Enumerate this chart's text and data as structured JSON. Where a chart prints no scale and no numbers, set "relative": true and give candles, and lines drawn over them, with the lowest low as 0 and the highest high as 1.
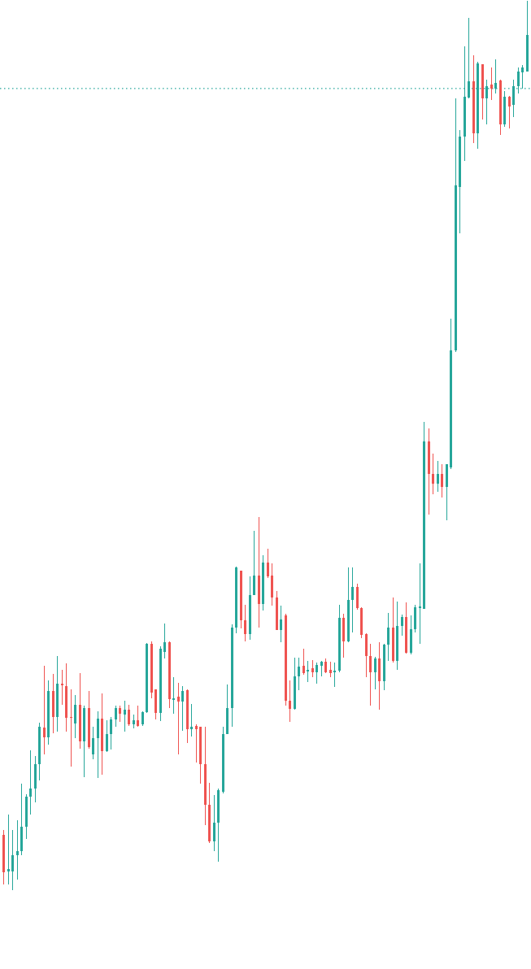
{
  "chart_data": {
    "type": "candlestick",
    "relative": true,
    "colors": [
      "#ef5350",
      "#26a69a",
      "#26a69a",
      "#26a69a",
      "#26a69a",
      "#26a69a",
      "#26a69a",
      "#26a69a",
      "#26a69a",
      "#ef5350",
      "#26a69a",
      "#ef5350",
      "#26a69a",
      "#ef5350",
      "#ef5350",
      "#ef5350",
      "#26a69a",
      "#ef5350",
      "#26a69a",
      "#ef5350",
      "#26a69a",
      "#26a69a",
      "#ef5350",
      "#26a69a",
      "#26a69a",
      "#26a69a",
      "#ef5350",
      "#26a69a",
      "#ef5350",
      "#26a69a",
      "#ef5350",
      "#26a69a",
      "#26a69a",
      "#ef5350",
      "#ef5350",
      "#26a69a",
      "#26a69a",
      "#ef5350",
      "#26a69a",
      "#ef5350",
      "#26a69a",
      "#ef5350",
      "#26a69a",
      "#ef5350",
      "#ef5350",
      "#ef5350",
      "#ef5350",
      "#26a69a",
      "#26a69a",
      "#26a69a",
      "#26a69a",
      "#26a69a",
      "#26a69a",
      "#ef5350",
      "#ef5350",
      "#26a69a",
      "#26a69a",
      "#ef5350",
      "#26a69a",
      "#ef5350",
      "#ef5350",
      "#ef5350",
      "#26a69a",
      "#ef5350",
      "#ef5350",
      "#26a69a",
      "#26a69a",
      "#ef5350",
      "#26a69a",
      "#ef5350",
      "#26a69a",
      "#26a69a",
      "#ef5350",
      "#ef5350",
      "#26a69a",
      "#26a69a",
      "#ef5350",
      "#26a69a",
      "#26a69a",
      "#ef5350",
      "#ef5350",
      "#ef5350",
      "#ef5350",
      "#26a69a",
      "#ef5350",
      "#26a69a",
      "#26a69a",
      "#ef5350",
      "#26a69a",
      "#26a69a",
      "#ef5350",
      "#26a69a",
      "#26a69a",
      "#26a69a",
      "#26a69a",
      "#ef5350",
      "#ef5350",
      "#26a69a",
      "#ef5350",
      "#26a69a",
      "#26a69a",
      "#26a69a",
      "#26a69a",
      "#26a69a",
      "#26a69a",
      "#ef5350",
      "#26a69a",
      "#ef5350",
      "#26a69a",
      "#ef5350",
      "#26a69a",
      "#ef5350",
      "#26a69a",
      "#ef5350",
      "#26a69a",
      "#26a69a",
      "#26a69a",
      "#26a69a"
    ],
    "categories": [
      null,
      null,
      null,
      null,
      null,
      null,
      null,
      null,
      null,
      null,
      null,
      null,
      null,
      null,
      null,
      null,
      null,
      null,
      null,
      null,
      null,
      null,
      null,
      null,
      null,
      null,
      null,
      null,
      null,
      null,
      null,
      null,
      null,
      null,
      null,
      null,
      null,
      null,
      null,
      null,
      null,
      null,
      null,
      null,
      null,
      null,
      null,
      null,
      null,
      null,
      null,
      null,
      null,
      null,
      null,
      null,
      null,
      null,
      null,
      null,
      null,
      null,
      null,
      null,
      null,
      null,
      null,
      null,
      null,
      null,
      null,
      null,
      null,
      null,
      null,
      null,
      null,
      null,
      null,
      null,
      null,
      null,
      null,
      null,
      null,
      null,
      null,
      null,
      null,
      null,
      null,
      null,
      null,
      null,
      null,
      null,
      null,
      null,
      null,
      null,
      null,
      null,
      null,
      null,
      null,
      null,
      null,
      null,
      null,
      null,
      null,
      null,
      null,
      null,
      null,
      null,
      null,
      null
    ],
    "ohlc": [
      [
        0.062,
        0.068,
        0.006,
        0.02
      ],
      [
        0.021,
        0.085,
        0.006,
        0.024
      ],
      [
        0.021,
        0.068,
        0,
        0.039
      ],
      [
        0.039,
        0.079,
        0.012,
        0.044
      ],
      [
        0.044,
        0.12,
        0.039,
        0.071
      ],
      [
        0.071,
        0.108,
        0.058,
        0.105
      ],
      [
        0.105,
        0.157,
        0.085,
        0.114
      ],
      [
        0.114,
        0.151,
        0.099,
        0.142
      ],
      [
        0.142,
        0.188,
        0.123,
        0.184
      ],
      [
        0.183,
        0.252,
        0.153,
        0.172
      ],
      [
        0.172,
        0.236,
        0.164,
        0.224
      ],
      [
        0.224,
        0.243,
        0.176,
        0.195
      ],
      [
        0.195,
        0.263,
        0.178,
        0.232
      ],
      [
        0.232,
        0.248,
        0.208,
        0.23
      ],
      [
        0.229,
        0.255,
        0.178,
        0.194
      ],
      [
        0.195,
        0.226,
        0.139,
        0.194
      ],
      [
        0.187,
        0.219,
        0.171,
        0.208
      ],
      [
        0.208,
        0.244,
        0.159,
        0.167
      ],
      [
        0.167,
        0.207,
        0.127,
        0.205
      ],
      [
        0.205,
        0.224,
        0.159,
        0.161
      ],
      [
        0.153,
        0.184,
        0.147,
        0.171
      ],
      [
        0.171,
        0.201,
        0.126,
        0.193
      ],
      [
        0.193,
        0.221,
        0.13,
        0.156
      ],
      [
        0.156,
        0.191,
        0.155,
        0.175
      ],
      [
        0.175,
        0.195,
        0.158,
        0.192
      ],
      [
        0.192,
        0.207,
        0.184,
        0.205
      ],
      [
        0.205,
        0.207,
        0.189,
        0.198
      ],
      [
        0.197,
        0.213,
        0.178,
        0.203
      ],
      [
        0.203,
        0.208,
        0.185,
        0.186
      ],
      [
        0.186,
        0.197,
        0.182,
        0.191
      ],
      [
        0.191,
        0.207,
        0.184,
        0.185
      ],
      [
        0.186,
        0.201,
        0.185,
        0.2
      ],
      [
        0.2,
        0.278,
        0.199,
        0.277
      ],
      [
        0.277,
        0.28,
        0.216,
        0.222
      ],
      [
        0.226,
        0.226,
        0.192,
        0.199
      ],
      [
        0.199,
        0.274,
        0.19,
        0.271
      ],
      [
        0.268,
        0.3,
        0.26,
        0.279
      ],
      [
        0.279,
        0.28,
        0.205,
        0.215
      ],
      [
        0.214,
        0.239,
        0.198,
        0.216
      ],
      [
        0.217,
        0.233,
        0.153,
        0.212
      ],
      [
        0.212,
        0.229,
        0.179,
        0.224
      ],
      [
        0.225,
        0.226,
        0.165,
        0.181
      ],
      [
        0.181,
        0.209,
        0.173,
        0.184
      ],
      [
        0.185,
        0.186,
        0.143,
        0.181
      ],
      [
        0.184,
        0.184,
        0.12,
        0.142
      ],
      [
        0.142,
        0.184,
        0.073,
        0.096
      ],
      [
        0.096,
        0.121,
        0.053,
        0.055
      ],
      [
        0.055,
        0.107,
        0.044,
        0.076
      ],
      [
        0.076,
        0.114,
        0.032,
        0.112
      ],
      [
        0.111,
        0.184,
        0.109,
        0.175
      ],
      [
        0.175,
        0.231,
        0.175,
        0.205
      ],
      [
        0.205,
        0.299,
        0.184,
        0.295
      ],
      [
        0.295,
        0.364,
        0.289,
        0.363
      ],
      [
        0.359,
        0.359,
        0.294,
        0.303
      ],
      [
        0.303,
        0.321,
        0.28,
        0.288
      ],
      [
        0.288,
        0.353,
        0.281,
        0.332
      ],
      [
        0.332,
        0.404,
        0.332,
        0.354
      ],
      [
        0.354,
        0.419,
        0.295,
        0.322
      ],
      [
        0.322,
        0.376,
        0.314,
        0.368
      ],
      [
        0.368,
        0.384,
        0.351,
        0.353
      ],
      [
        0.354,
        0.367,
        0.32,
        0.329
      ],
      [
        0.329,
        0.336,
        0.292,
        0.292
      ],
      [
        0.292,
        0.32,
        0.279,
        0.304
      ],
      [
        0.309,
        0.311,
        0.207,
        0.213
      ],
      [
        0.213,
        0.236,
        0.189,
        0.204
      ],
      [
        0.204,
        0.261,
        0.203,
        0.24
      ],
      [
        0.24,
        0.261,
        0.225,
        0.251
      ],
      [
        0.252,
        0.271,
        0.242,
        0.244
      ],
      [
        0.246,
        0.258,
        0.234,
        0.248
      ],
      [
        0.249,
        0.259,
        0.239,
        0.245
      ],
      [
        0.245,
        0.256,
        0.232,
        0.253
      ],
      [
        0.252,
        0.258,
        0.24,
        0.257
      ],
      [
        0.257,
        0.26,
        0.244,
        0.245
      ],
      [
        0.248,
        0.257,
        0.239,
        0.244
      ],
      [
        0.245,
        0.256,
        0.228,
        0.247
      ],
      [
        0.247,
        0.321,
        0.245,
        0.306
      ],
      [
        0.306,
        0.311,
        0.261,
        0.28
      ],
      [
        0.28,
        0.363,
        0.279,
        0.326
      ],
      [
        0.326,
        0.363,
        0.29,
        0.341
      ],
      [
        0.341,
        0.344,
        0.315,
        0.317
      ],
      [
        0.317,
        0.318,
        0.283,
        0.287
      ],
      [
        0.288,
        0.289,
        0.239,
        0.263
      ],
      [
        0.263,
        0.277,
        0.207,
        0.245
      ],
      [
        0.245,
        0.262,
        0.226,
        0.26
      ],
      [
        0.26,
        0.279,
        0.203,
        0.235
      ],
      [
        0.235,
        0.277,
        0.225,
        0.276
      ],
      [
        0.276,
        0.312,
        0.258,
        0.295
      ],
      [
        0.295,
        0.329,
        0.256,
        0.258
      ],
      [
        0.258,
        0.324,
        0.248,
        0.297
      ],
      [
        0.297,
        0.31,
        0.286,
        0.307
      ],
      [
        0.307,
        0.323,
        0.266,
        0.267
      ],
      [
        0.267,
        0.309,
        0.265,
        0.293
      ],
      [
        0.293,
        0.321,
        0.29,
        0.318
      ],
      [
        0.317,
        0.367,
        0.277,
        0.319
      ],
      [
        0.316,
        0.526,
        0.316,
        0.504
      ],
      [
        0.504,
        0.519,
        0.422,
        0.468
      ],
      [
        0.468,
        0.491,
        0.445,
        0.457
      ],
      [
        0.457,
        0.482,
        0.448,
        0.468
      ],
      [
        0.468,
        0.479,
        0.441,
        0.453
      ],
      [
        0.453,
        0.479,
        0.416,
        0.479
      ],
      [
        0.475,
        0.642,
        0.473,
        0.607
      ],
      [
        0.607,
        0.89,
        0.605,
        0.792
      ],
      [
        0.79,
        0.854,
        0.738,
        0.847
      ],
      [
        0.847,
        0.948,
        0.82,
        0.892
      ],
      [
        0.891,
        0.98,
        0.89,
        0.909
      ],
      [
        0.909,
        0.938,
        0.84,
        0.851
      ],
      [
        0.851,
        0.931,
        0.833,
        0.929
      ],
      [
        0.928,
        0.928,
        0.866,
        0.89
      ],
      [
        0.89,
        0.911,
        0.861,
        0.904
      ],
      [
        0.905,
        0.925,
        0.888,
        0.901
      ],
      [
        0.901,
        0.934,
        0.895,
        0.907
      ],
      [
        0.91,
        0.911,
        0.849,
        0.861
      ],
      [
        0.861,
        0.898,
        0.858,
        0.892
      ],
      [
        0.892,
        0.893,
        0.856,
        0.881
      ],
      [
        0.883,
        0.911,
        0.869,
        0.904
      ],
      [
        0.904,
        0.925,
        0.895,
        0.92
      ],
      [
        0.919,
        0.927,
        0.901,
        0.925
      ],
      [
        0.92,
        1,
        0.92,
        0.961
      ]
    ],
    "ref_lines": [
      {
        "axis": "y",
        "value": 0.901,
        "color": "#26a69a",
        "line_style": "dotted"
      }
    ]
  }
}
